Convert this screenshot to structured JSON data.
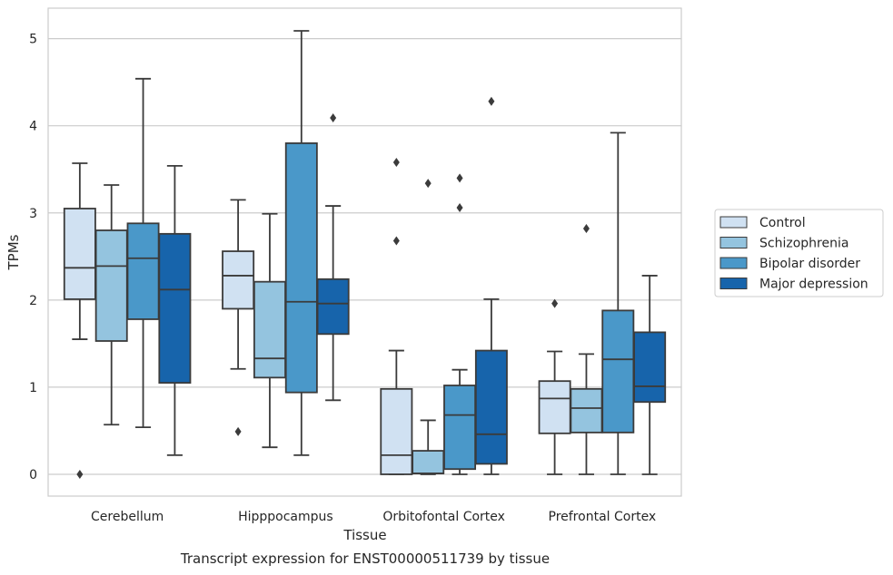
{
  "caption": "Transcript expression for ENST00000511739 by tissue",
  "chart_data": {
    "type": "box",
    "xlabel": "Tissue",
    "ylabel": "TPMs",
    "ylim": [
      -0.25,
      5.35
    ],
    "yticks": [
      "0",
      "1",
      "2",
      "3",
      "4",
      "5"
    ],
    "ytick_values": [
      0,
      1,
      2,
      3,
      4,
      5
    ],
    "grid": "horizontal",
    "legend_position": "right",
    "categories": [
      "Cerebellum",
      "Hipppocampus",
      "Orbitofontal Cortex",
      "Prefrontal Cortex"
    ],
    "series": [
      {
        "name": "Control",
        "color": "#d0e1f2",
        "boxes": [
          {
            "whislo": 1.55,
            "q1": 2.01,
            "med": 2.37,
            "q3": 3.05,
            "whishi": 3.57,
            "fliers": [
              0.0
            ]
          },
          {
            "whislo": 1.21,
            "q1": 1.9,
            "med": 2.28,
            "q3": 2.56,
            "whishi": 3.15,
            "fliers": [
              0.49
            ]
          },
          {
            "whislo": 0.0,
            "q1": 0.0,
            "med": 0.22,
            "q3": 0.98,
            "whishi": 1.42,
            "fliers": [
              2.68,
              3.58
            ]
          },
          {
            "whislo": 0.0,
            "q1": 0.47,
            "med": 0.87,
            "q3": 1.07,
            "whishi": 1.41,
            "fliers": [
              1.96
            ]
          }
        ]
      },
      {
        "name": "Schizophrenia",
        "color": "#94c4df",
        "boxes": [
          {
            "whislo": 0.57,
            "q1": 1.53,
            "med": 2.39,
            "q3": 2.8,
            "whishi": 3.32,
            "fliers": []
          },
          {
            "whislo": 0.31,
            "q1": 1.11,
            "med": 1.33,
            "q3": 2.21,
            "whishi": 2.99,
            "fliers": []
          },
          {
            "whislo": 0.0,
            "q1": 0.01,
            "med": 0.01,
            "q3": 0.27,
            "whishi": 0.62,
            "fliers": [
              3.34
            ]
          },
          {
            "whislo": 0.0,
            "q1": 0.48,
            "med": 0.76,
            "q3": 0.98,
            "whishi": 1.38,
            "fliers": [
              2.82
            ]
          }
        ]
      },
      {
        "name": "Bipolar disorder",
        "color": "#4a98c9",
        "boxes": [
          {
            "whislo": 0.54,
            "q1": 1.78,
            "med": 2.48,
            "q3": 2.88,
            "whishi": 4.54,
            "fliers": []
          },
          {
            "whislo": 0.22,
            "q1": 0.94,
            "med": 1.98,
            "q3": 3.8,
            "whishi": 5.09,
            "fliers": []
          },
          {
            "whislo": 0.0,
            "q1": 0.06,
            "med": 0.68,
            "q3": 1.02,
            "whishi": 1.2,
            "fliers": [
              3.06,
              3.4
            ]
          },
          {
            "whislo": 0.0,
            "q1": 0.48,
            "med": 1.32,
            "q3": 1.88,
            "whishi": 3.92,
            "fliers": []
          }
        ]
      },
      {
        "name": "Major depression",
        "color": "#1764ab",
        "boxes": [
          {
            "whislo": 0.22,
            "q1": 1.05,
            "med": 2.12,
            "q3": 2.76,
            "whishi": 3.54,
            "fliers": []
          },
          {
            "whislo": 0.85,
            "q1": 1.61,
            "med": 1.96,
            "q3": 2.24,
            "whishi": 3.08,
            "fliers": [
              4.09
            ]
          },
          {
            "whislo": 0.0,
            "q1": 0.12,
            "med": 0.46,
            "q3": 1.42,
            "whishi": 2.01,
            "fliers": [
              4.28
            ]
          },
          {
            "whislo": 0.0,
            "q1": 0.83,
            "med": 1.01,
            "q3": 1.63,
            "whishi": 2.28,
            "fliers": []
          }
        ]
      }
    ]
  }
}
